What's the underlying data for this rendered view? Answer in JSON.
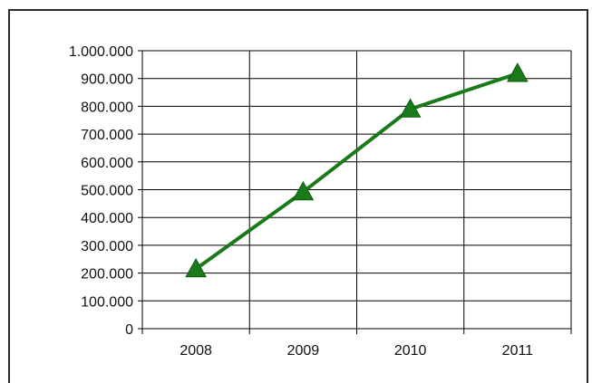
{
  "chart_data": {
    "type": "line",
    "title": "",
    "xlabel": "",
    "ylabel": "",
    "categories": [
      "2008",
      "2009",
      "2010",
      "2011"
    ],
    "series": [
      {
        "values": [
          215000,
          492000,
          790000,
          918000
        ],
        "color": "#1a7a1a",
        "marker": "triangle"
      }
    ],
    "ylim": [
      0,
      1000000
    ],
    "y_ticks": [
      0,
      100000,
      200000,
      300000,
      400000,
      500000,
      600000,
      700000,
      800000,
      900000,
      1000000
    ],
    "y_tick_labels": [
      "0",
      "100.000",
      "200.000",
      "300.000",
      "400.000",
      "500.000",
      "600.000",
      "700.000",
      "800.000",
      "900.000",
      "1.000.000"
    ],
    "grid": true,
    "legend": "none"
  }
}
